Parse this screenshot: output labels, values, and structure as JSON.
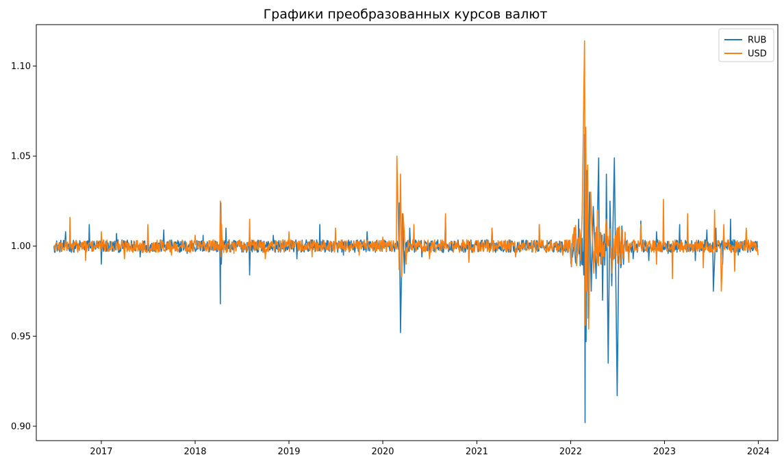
{
  "chart_data": {
    "type": "line",
    "title": "Графики преобразованных курсов валют",
    "xlabel": "",
    "ylabel": "",
    "x_axis": "date",
    "xlim": [
      "2016-04-23",
      "2024-03-17"
    ],
    "ylim": [
      0.892,
      1.123
    ],
    "x_ticks": [
      "2017",
      "2018",
      "2019",
      "2020",
      "2021",
      "2022",
      "2023",
      "2024"
    ],
    "x_tick_dates": [
      "2017-01-01",
      "2018-01-01",
      "2019-01-01",
      "2020-01-01",
      "2021-01-01",
      "2022-01-01",
      "2023-01-01",
      "2024-01-01"
    ],
    "y_ticks": [
      "0.90",
      "0.95",
      "1.00",
      "1.05",
      "1.10"
    ],
    "y_tick_values": [
      0.9,
      0.95,
      1.0,
      1.05,
      1.1
    ],
    "grid": false,
    "legend_position": "top-right",
    "series": [
      {
        "name": "RUB",
        "color": "#1f77b4",
        "x": [
          "2016-07-01",
          "2016-08-15",
          "2016-10-01",
          "2016-11-15",
          "2017-01-01",
          "2017-03-01",
          "2017-06-01",
          "2017-09-01",
          "2017-12-01",
          "2018-02-01",
          "2018-04-09",
          "2018-04-11",
          "2018-04-13",
          "2018-05-01",
          "2018-08-01",
          "2018-11-01",
          "2019-02-01",
          "2019-05-01",
          "2019-08-01",
          "2019-11-01",
          "2020-01-15",
          "2020-03-05",
          "2020-03-10",
          "2020-03-18",
          "2020-03-25",
          "2020-04-15",
          "2020-06-01",
          "2020-09-01",
          "2020-12-01",
          "2021-03-01",
          "2021-06-01",
          "2021-09-01",
          "2021-12-01",
          "2022-02-01",
          "2022-02-21",
          "2022-02-24",
          "2022-02-26",
          "2022-02-28",
          "2022-03-02",
          "2022-03-05",
          "2022-03-10",
          "2022-03-15",
          "2022-03-22",
          "2022-03-30",
          "2022-04-10",
          "2022-04-20",
          "2022-05-05",
          "2022-05-20",
          "2022-05-27",
          "2022-06-03",
          "2022-06-10",
          "2022-06-20",
          "2022-07-01",
          "2022-07-08",
          "2022-07-15",
          "2022-08-01",
          "2022-09-01",
          "2022-10-01",
          "2022-11-01",
          "2022-12-01",
          "2023-01-15",
          "2023-03-01",
          "2023-05-01",
          "2023-06-15",
          "2023-07-10",
          "2023-07-20",
          "2023-08-15",
          "2023-09-15",
          "2023-10-15",
          "2023-11-15",
          "2023-12-31"
        ],
        "values": [
          1.0,
          1.008,
          0.997,
          1.012,
          0.99,
          1.007,
          0.994,
          1.009,
          0.996,
          1.006,
          0.968,
          1.024,
          0.99,
          1.01,
          0.984,
          1.006,
          0.993,
          1.012,
          0.995,
          1.008,
          0.997,
          1.024,
          0.952,
          1.018,
          0.985,
          1.01,
          0.994,
          1.016,
          0.992,
          1.01,
          0.995,
          1.012,
          0.996,
          1.015,
          0.984,
          1.062,
          0.902,
          1.055,
          0.947,
          1.042,
          0.96,
          1.03,
          0.975,
          1.022,
          0.982,
          1.049,
          0.97,
          1.04,
          0.935,
          1.025,
          0.978,
          1.049,
          0.917,
          1.008,
          0.988,
          1.004,
          0.993,
          1.014,
          0.992,
          1.008,
          0.996,
          1.012,
          0.992,
          1.009,
          0.975,
          1.01,
          0.99,
          1.015,
          0.995,
          1.009,
          0.998
        ]
      },
      {
        "name": "USD",
        "color": "#ff7f0e",
        "x": [
          "2016-07-01",
          "2016-09-01",
          "2016-11-01",
          "2017-01-01",
          "2017-04-01",
          "2017-07-01",
          "2017-10-01",
          "2018-01-01",
          "2018-04-09",
          "2018-04-11",
          "2018-04-14",
          "2018-06-01",
          "2018-08-01",
          "2018-10-01",
          "2019-01-01",
          "2019-04-01",
          "2019-07-01",
          "2019-10-01",
          "2020-01-01",
          "2020-02-25",
          "2020-03-05",
          "2020-03-10",
          "2020-03-15",
          "2020-03-20",
          "2020-04-01",
          "2020-05-01",
          "2020-07-01",
          "2020-09-01",
          "2020-12-01",
          "2021-03-01",
          "2021-06-01",
          "2021-09-01",
          "2021-12-01",
          "2022-02-15",
          "2022-02-24",
          "2022-02-27",
          "2022-03-01",
          "2022-03-04",
          "2022-03-08",
          "2022-03-12",
          "2022-03-20",
          "2022-04-01",
          "2022-04-15",
          "2022-05-01",
          "2022-05-20",
          "2022-06-10",
          "2022-07-01",
          "2022-08-15",
          "2022-10-01",
          "2022-12-01",
          "2022-12-28",
          "2023-02-01",
          "2023-04-01",
          "2023-06-01",
          "2023-07-15",
          "2023-08-10",
          "2023-08-20",
          "2023-10-01",
          "2023-11-15",
          "2023-12-31"
        ],
        "values": [
          1.0,
          1.016,
          0.992,
          1.008,
          0.993,
          1.012,
          0.995,
          1.006,
          1.025,
          0.994,
          1.012,
          0.996,
          1.015,
          0.993,
          1.008,
          0.994,
          1.01,
          0.995,
          1.005,
          1.05,
          0.987,
          1.04,
          0.983,
          1.018,
          0.99,
          1.012,
          0.993,
          1.018,
          0.991,
          1.01,
          0.994,
          1.012,
          0.995,
          1.02,
          1.114,
          0.956,
          1.066,
          0.975,
          1.045,
          0.954,
          1.03,
          0.985,
          1.02,
          0.99,
          1.015,
          0.985,
          1.01,
          0.991,
          1.012,
          0.99,
          1.026,
          0.982,
          1.018,
          0.988,
          1.02,
          0.975,
          1.012,
          0.986,
          1.01,
          0.995
        ]
      }
    ]
  }
}
